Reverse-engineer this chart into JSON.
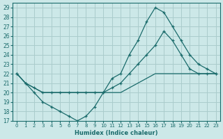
{
  "xlabel": "Humidex (Indice chaleur)",
  "bg_color": "#cce8e8",
  "grid_color": "#aacccc",
  "line_color": "#1a6b6b",
  "x_ticks": [
    0,
    1,
    2,
    3,
    4,
    5,
    6,
    7,
    8,
    9,
    10,
    11,
    12,
    13,
    14,
    15,
    16,
    17,
    18,
    19,
    20,
    21,
    22,
    23
  ],
  "y_ticks": [
    17,
    18,
    19,
    20,
    21,
    22,
    23,
    24,
    25,
    26,
    27,
    28,
    29
  ],
  "xlim": [
    -0.5,
    23.5
  ],
  "ylim": [
    17,
    29.5
  ],
  "series": [
    {
      "x": [
        0,
        1,
        2,
        3,
        4,
        5,
        6,
        7,
        8,
        9,
        10,
        11,
        12,
        13,
        14,
        15,
        16,
        17,
        18,
        19,
        20,
        21,
        22,
        23
      ],
      "y": [
        22,
        21,
        20,
        19,
        18.5,
        18,
        17.5,
        17,
        17.5,
        18.5,
        20,
        21.5,
        22,
        24,
        25.5,
        27.5,
        29,
        28.5,
        27,
        25.5,
        24,
        23,
        22.5,
        22
      ],
      "has_markers": true
    },
    {
      "x": [
        0,
        1,
        2,
        3,
        4,
        5,
        6,
        7,
        8,
        9,
        10,
        11,
        12,
        13,
        14,
        15,
        16,
        17,
        18,
        19,
        20,
        21,
        22,
        23
      ],
      "y": [
        22,
        21,
        20.5,
        20,
        20,
        20,
        20,
        20,
        20,
        20,
        20,
        20.5,
        21,
        22,
        23,
        24,
        25,
        26.5,
        25.5,
        24,
        22.5,
        22,
        22,
        22
      ],
      "has_markers": true
    },
    {
      "x": [
        0,
        1,
        2,
        3,
        4,
        5,
        6,
        7,
        8,
        9,
        10,
        11,
        12,
        13,
        14,
        15,
        16,
        17,
        18,
        19,
        20,
        21,
        22,
        23
      ],
      "y": [
        22,
        21,
        20.5,
        20,
        20,
        20,
        20,
        20,
        20,
        20,
        20,
        20,
        20,
        20.5,
        21,
        21.5,
        22,
        22,
        22,
        22,
        22,
        22,
        22,
        22
      ],
      "has_markers": false
    }
  ]
}
